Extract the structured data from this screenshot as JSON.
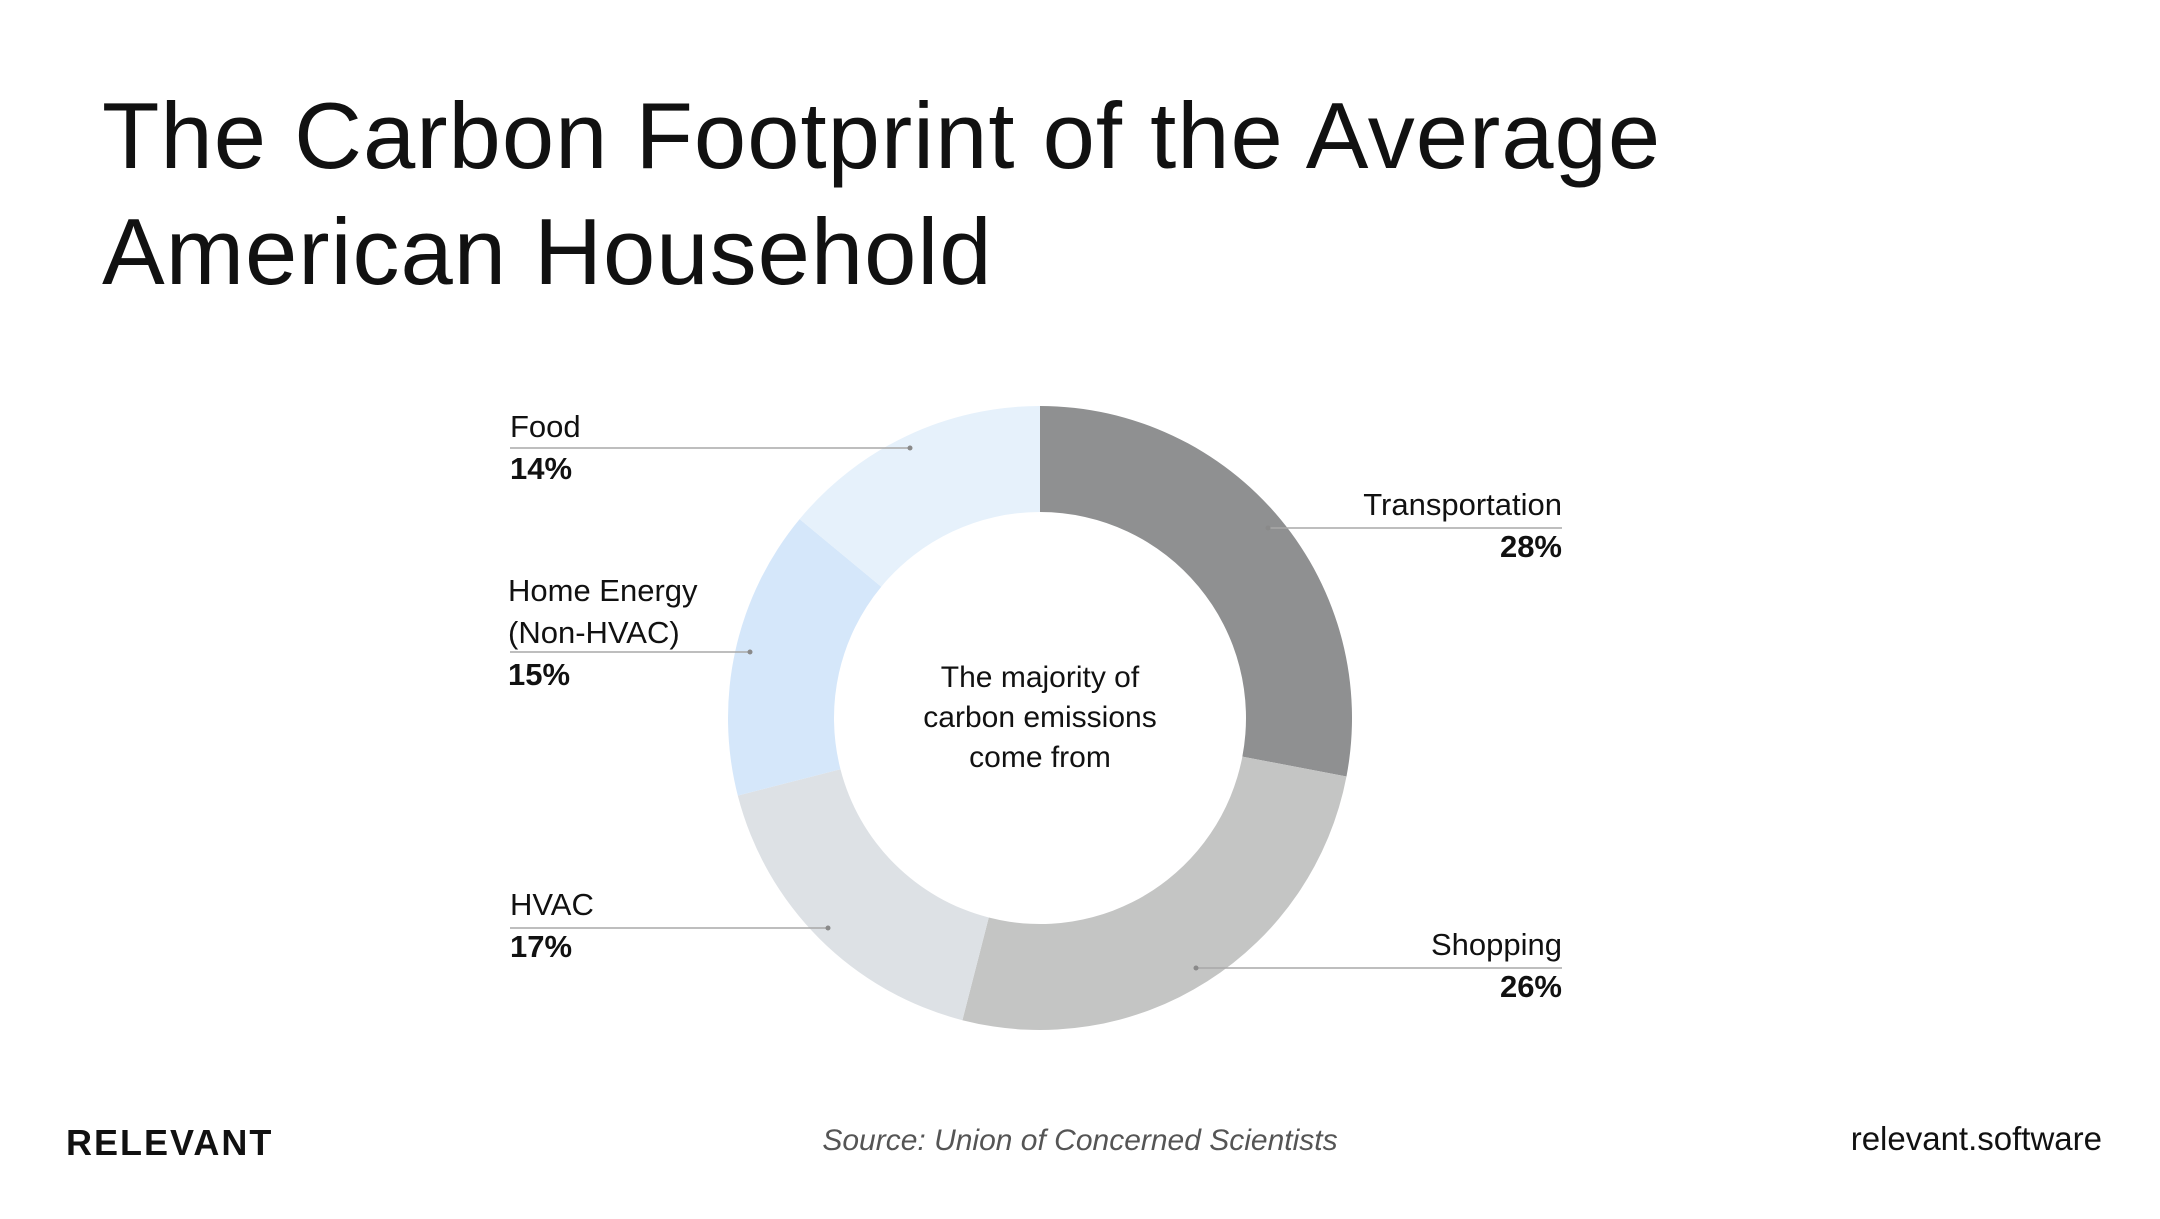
{
  "title": "The Carbon Footprint of the Average American Household",
  "center_text": [
    "The majority of",
    "carbon emissions",
    "come from"
  ],
  "footer": {
    "brand": "RELEVANT",
    "source": "Source: Union of Concerned Scientists",
    "site": "relevant.software"
  },
  "chart_data": {
    "type": "pie",
    "donut": true,
    "title": "The Carbon Footprint of the Average American Household",
    "legend": "none",
    "slices": [
      {
        "label": "Transportation",
        "value": 28,
        "display": "28%",
        "color": "#8f9091"
      },
      {
        "label": "Shopping",
        "value": 26,
        "display": "26%",
        "color": "#c4c5c4"
      },
      {
        "label": "HVAC",
        "value": 17,
        "display": "17%",
        "color": "#dde1e5"
      },
      {
        "label": "Home Energy (Non-HVAC)",
        "label_lines": [
          "Home Energy",
          "(Non-HVAC)"
        ],
        "value": 15,
        "display": "15%",
        "color": "#d5e7fa"
      },
      {
        "label": "Food",
        "value": 14,
        "display": "14%",
        "color": "#e6f1fb"
      }
    ]
  }
}
